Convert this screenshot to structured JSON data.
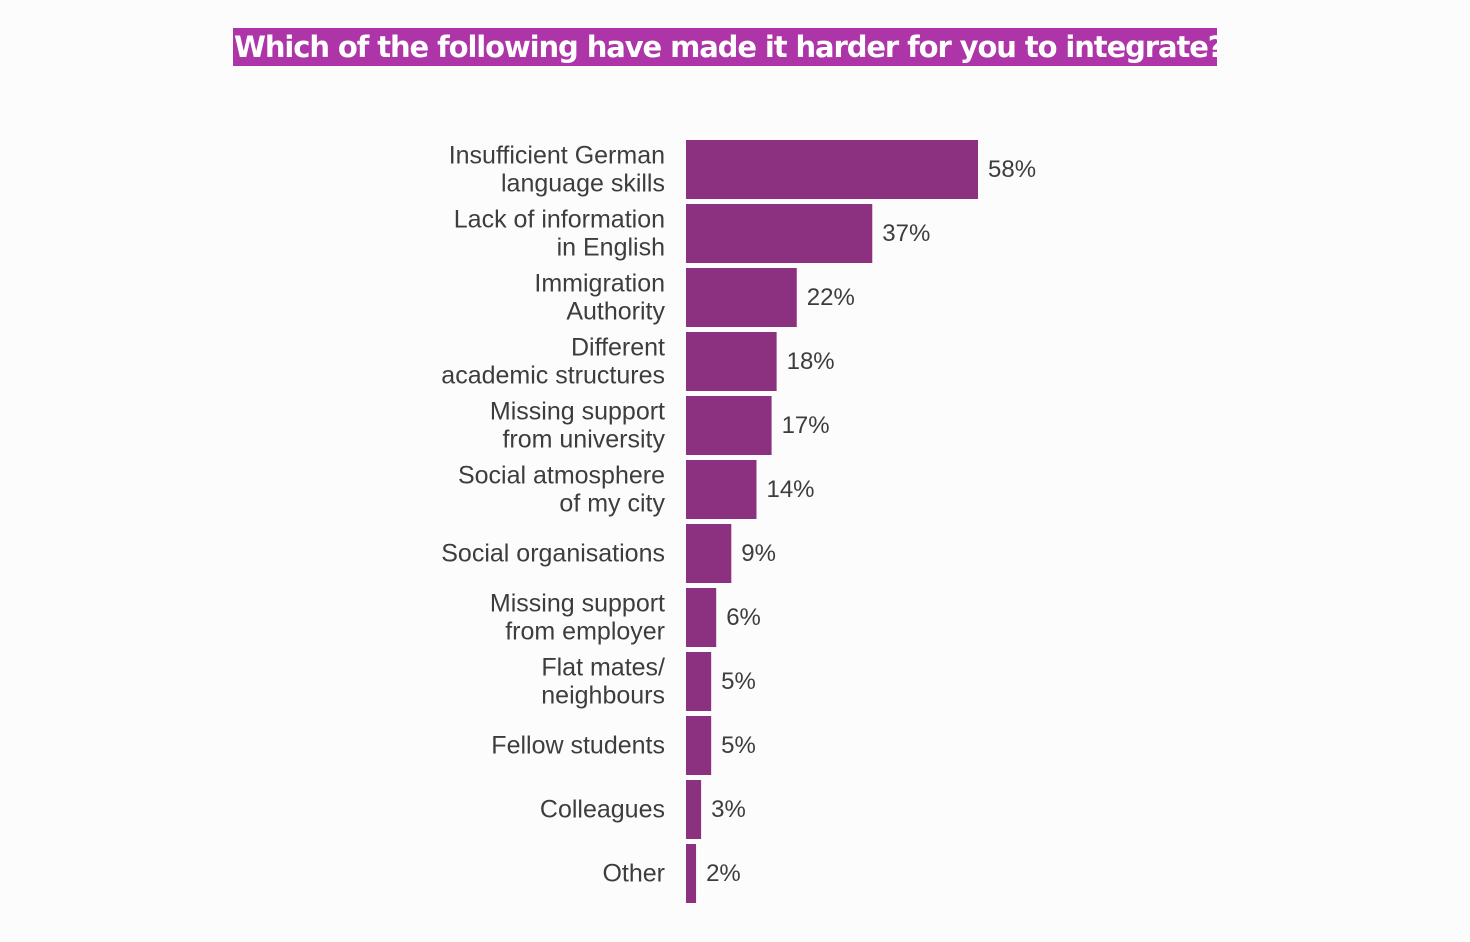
{
  "page": {
    "title": "Which of the following have made it harder for you to integrate?",
    "title_bg_color": "#ad35a8"
  },
  "chart_data": {
    "type": "bar",
    "orientation": "horizontal",
    "title": "Which of the following have made it harder for you to integrate?",
    "categories": [
      [
        "Insufficient  German",
        "language skills"
      ],
      [
        "Lack of information",
        "in English"
      ],
      [
        "Immigration",
        "Authority"
      ],
      [
        "Different",
        "academic structures"
      ],
      [
        "Missing support",
        "from university"
      ],
      [
        "Social atmosphere",
        "of my city"
      ],
      [
        "Social organisations"
      ],
      [
        "Missing support",
        "from employer"
      ],
      [
        "Flat mates/",
        "neighbours"
      ],
      [
        "Fellow students"
      ],
      [
        "Colleagues"
      ],
      [
        "Other"
      ]
    ],
    "values": [
      58,
      37,
      22,
      18,
      17,
      14,
      9,
      6,
      5,
      5,
      3,
      2
    ],
    "value_labels": [
      "58%",
      "37%",
      "22%",
      "18%",
      "17%",
      "14%",
      "9%",
      "6%",
      "5%",
      "5%",
      "3%",
      "2%"
    ],
    "unit": "%",
    "bar_color": "#8b3180",
    "grid": false,
    "legend": "none",
    "xlabel": "",
    "ylabel": ""
  }
}
